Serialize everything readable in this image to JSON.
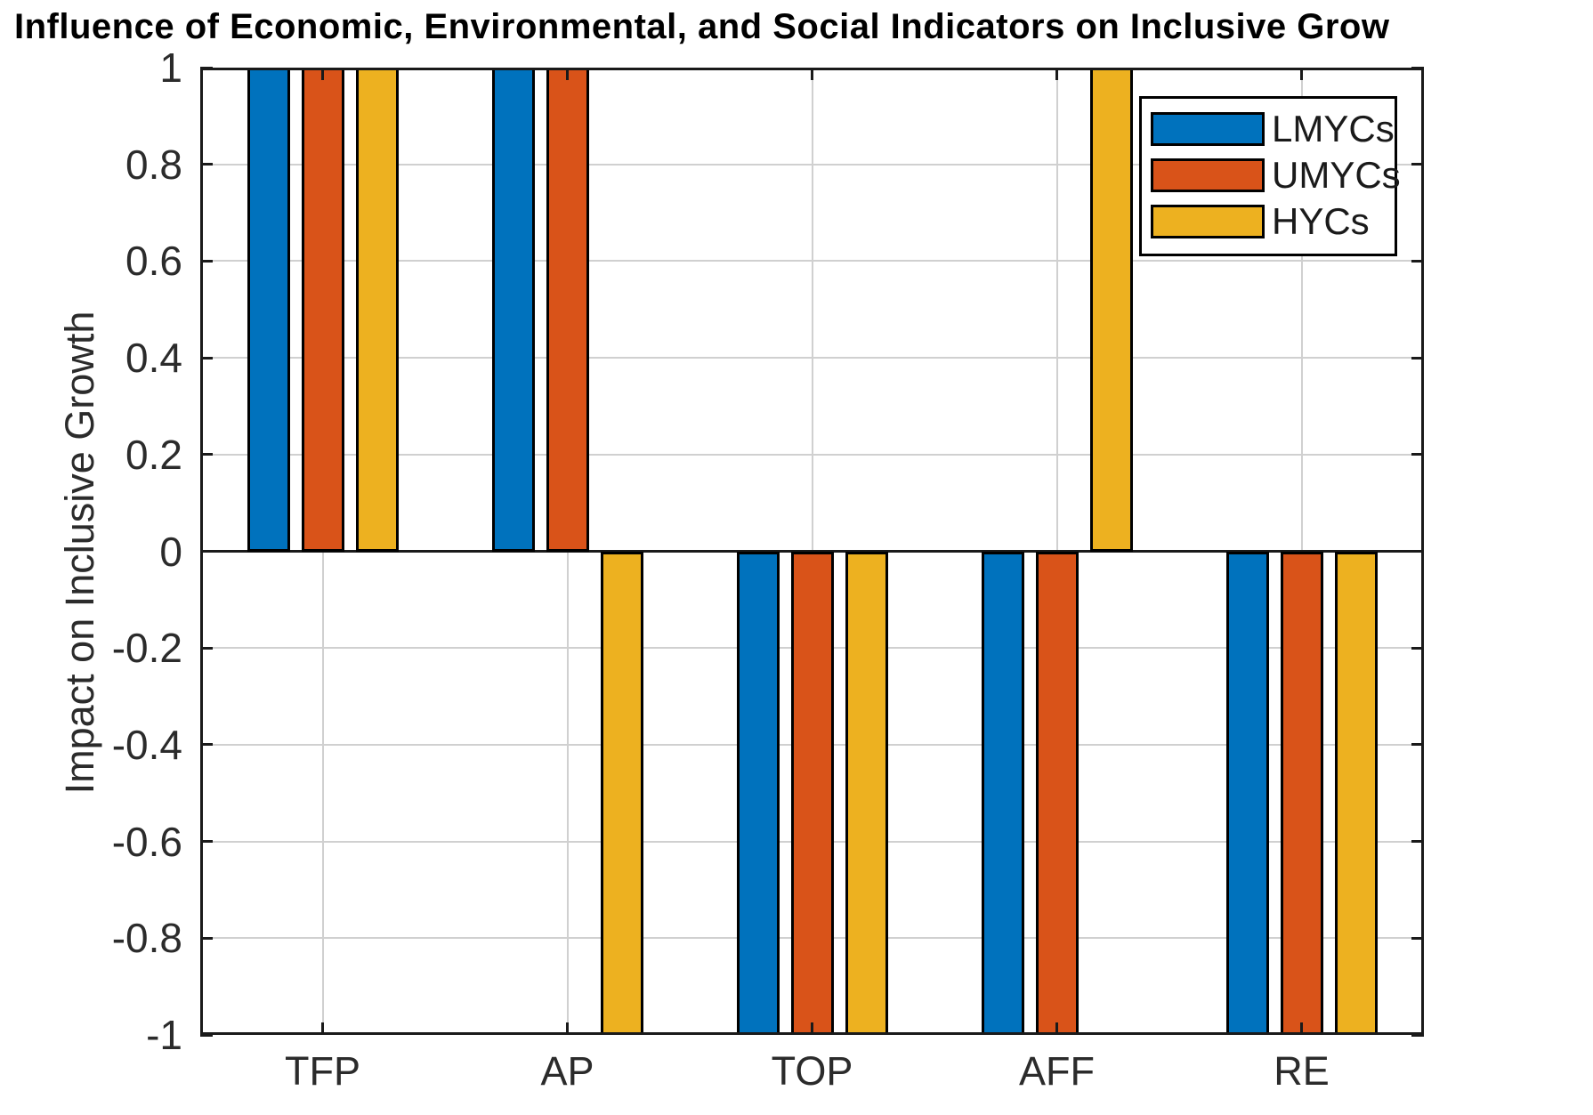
{
  "figure": {
    "title": "Influence of Economic, Environmental, and Social Indicators on Inclusive Grow",
    "ylabel": "Impact on Inclusive Growth"
  },
  "chart_data": {
    "type": "bar",
    "title": "Influence of Economic, Environmental, and Social Indicators on Inclusive Grow",
    "ylabel": "Impact on Inclusive Growth",
    "xlabel": "",
    "categories": [
      "TFP",
      "AP",
      "TOP",
      "AFF",
      "RE"
    ],
    "series": [
      {
        "name": "LMYCs",
        "color": "#0072BD",
        "values": [
          1,
          1,
          -1,
          -1,
          -1
        ]
      },
      {
        "name": "UMYCs",
        "color": "#D95319",
        "values": [
          1,
          1,
          -1,
          -1,
          -1
        ]
      },
      {
        "name": "HYCs",
        "color": "#EDB120",
        "values": [
          1,
          -1,
          -1,
          1,
          -1
        ]
      }
    ],
    "ylim": [
      -1,
      1
    ],
    "ytick_values": [
      1,
      0.8,
      0.6,
      0.4,
      0.2,
      0,
      -0.2,
      -0.4,
      -0.6,
      -0.8,
      -1
    ],
    "ytick_labels": [
      "1",
      "0.8",
      "0.6",
      "0.4",
      "0.2",
      "0",
      "-0.2",
      "-0.4",
      "-0.6",
      "-0.8",
      "-1"
    ],
    "grid": true,
    "legend": {
      "position": "top-right",
      "entries": [
        "LMYCs",
        "UMYCs",
        "HYCs"
      ]
    },
    "colors": {
      "axis": "#1a1a1a",
      "grid": "#d0d0d0",
      "tick_label": "#2b2b2b",
      "zero_line": "#1a1a1a",
      "bar_edge": "#000000",
      "legend_border": "#000000"
    }
  }
}
